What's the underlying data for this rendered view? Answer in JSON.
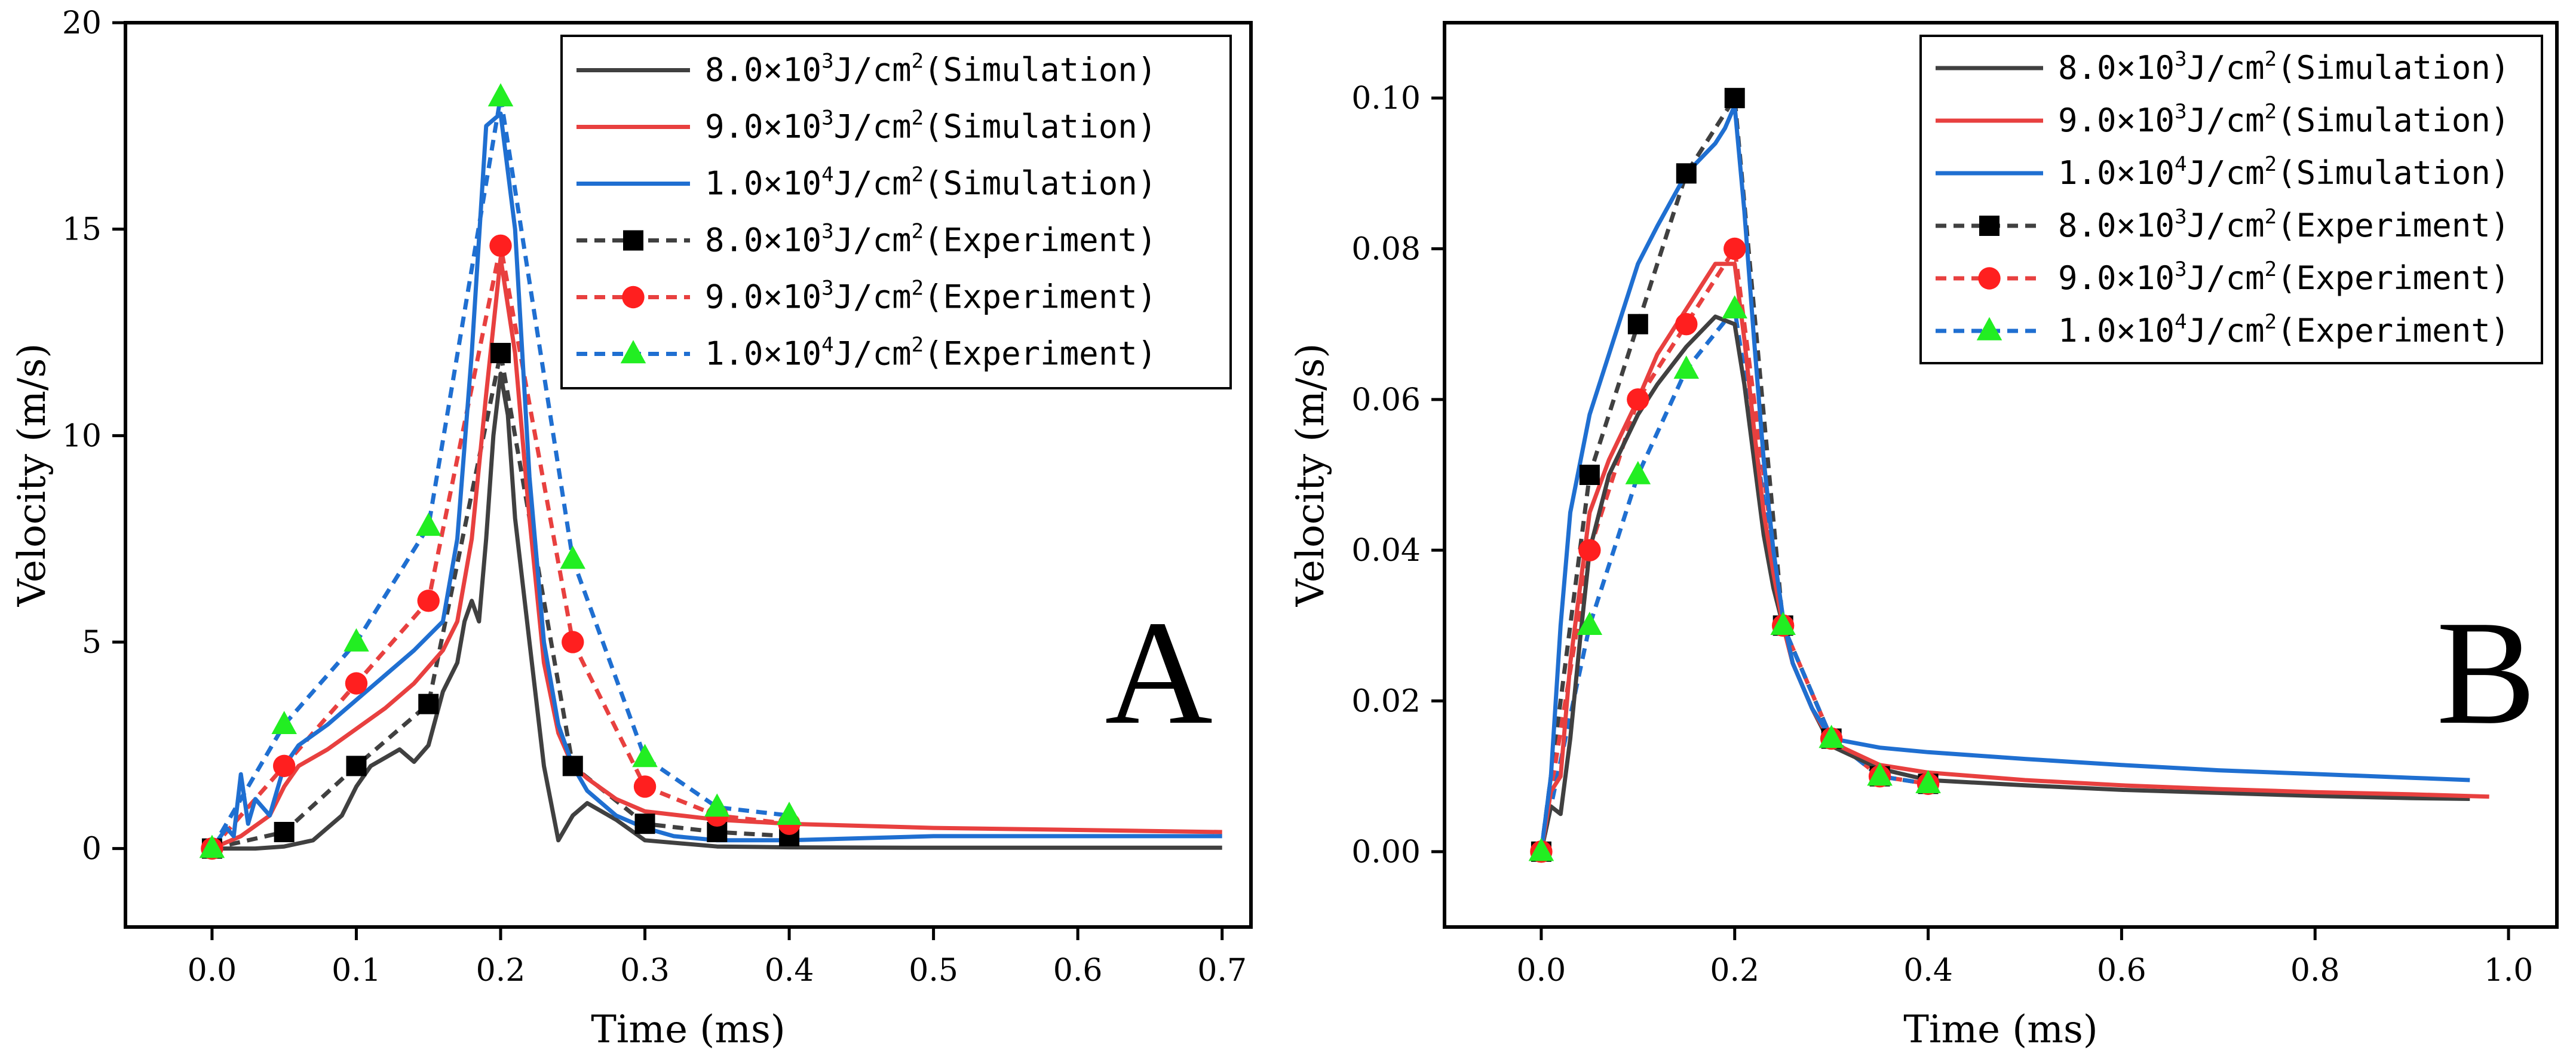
{
  "chart_data": [
    {
      "panel": "A",
      "type": "line",
      "xlabel": "Time (ms)",
      "ylabel": "Velocity (m/s)",
      "xlim": [
        -0.06,
        0.72
      ],
      "ylim": [
        -1.9,
        20
      ],
      "xticks": [
        0.0,
        0.1,
        0.2,
        0.3,
        0.4,
        0.5,
        0.6,
        0.7
      ],
      "xtick_labels": [
        "0.0",
        "0.1",
        "0.2",
        "0.3",
        "0.4",
        "0.5",
        "0.6",
        "0.7"
      ],
      "yticks": [
        0,
        5,
        10,
        15,
        20
      ],
      "ytick_labels": [
        "0",
        "5",
        "10",
        "15",
        "20"
      ],
      "legend_position": "top-right",
      "series": [
        {
          "name": "8.0×10³J/cm²(Simulation)",
          "prefix": "8.0×10",
          "exp": "3",
          "unit": "J/cm",
          "unit_exp": "2",
          "suffix": "(Simulation)",
          "kind": "simulation",
          "color": "#404040",
          "x": [
            0,
            0.03,
            0.05,
            0.07,
            0.09,
            0.1,
            0.11,
            0.12,
            0.13,
            0.14,
            0.15,
            0.16,
            0.17,
            0.175,
            0.18,
            0.185,
            0.19,
            0.195,
            0.2,
            0.205,
            0.21,
            0.22,
            0.23,
            0.24,
            0.25,
            0.26,
            0.27,
            0.28,
            0.3,
            0.35,
            0.4,
            0.5,
            0.6,
            0.7
          ],
          "y": [
            0,
            0,
            0.05,
            0.2,
            0.8,
            1.5,
            2.0,
            2.2,
            2.4,
            2.1,
            2.5,
            3.8,
            4.5,
            5.5,
            6.0,
            5.5,
            7.5,
            10.0,
            11.5,
            10.5,
            8.0,
            5.0,
            2.0,
            0.2,
            0.8,
            1.1,
            0.9,
            0.7,
            0.2,
            0.05,
            0.03,
            0.02,
            0.02,
            0.02
          ]
        },
        {
          "name": "9.0×10³J/cm²(Simulation)",
          "prefix": "9.0×10",
          "exp": "3",
          "unit": "J/cm",
          "unit_exp": "2",
          "suffix": "(Simulation)",
          "kind": "simulation",
          "color": "#e8403f",
          "x": [
            0,
            0.02,
            0.04,
            0.05,
            0.06,
            0.08,
            0.1,
            0.12,
            0.14,
            0.16,
            0.17,
            0.18,
            0.19,
            0.2,
            0.21,
            0.22,
            0.23,
            0.24,
            0.25,
            0.26,
            0.28,
            0.3,
            0.35,
            0.4,
            0.5,
            0.6,
            0.7
          ],
          "y": [
            0,
            0.3,
            0.8,
            1.5,
            2.0,
            2.4,
            2.9,
            3.4,
            4.0,
            4.8,
            5.5,
            7.5,
            11.0,
            14.3,
            12.0,
            8.0,
            4.5,
            2.8,
            2.0,
            1.7,
            1.2,
            0.9,
            0.7,
            0.6,
            0.5,
            0.45,
            0.4
          ]
        },
        {
          "name": "1.0×10⁴J/cm²(Simulation)",
          "prefix": "1.0×10",
          "exp": "4",
          "unit": "J/cm",
          "unit_exp": "2",
          "suffix": "(Simulation)",
          "kind": "simulation",
          "color": "#1f6fd1",
          "x": [
            0,
            0.01,
            0.015,
            0.02,
            0.025,
            0.03,
            0.04,
            0.05,
            0.06,
            0.08,
            0.1,
            0.12,
            0.14,
            0.16,
            0.17,
            0.18,
            0.19,
            0.2,
            0.21,
            0.22,
            0.23,
            0.24,
            0.25,
            0.26,
            0.28,
            0.3,
            0.32,
            0.35,
            0.4,
            0.5,
            0.6,
            0.7
          ],
          "y": [
            0,
            0.5,
            0.3,
            1.8,
            0.6,
            1.2,
            0.8,
            2.0,
            2.5,
            3.0,
            3.6,
            4.2,
            4.8,
            5.5,
            7.5,
            12.0,
            17.5,
            17.8,
            15.0,
            9.0,
            5.0,
            3.0,
            2.0,
            1.4,
            0.8,
            0.5,
            0.3,
            0.2,
            0.2,
            0.3,
            0.3,
            0.3
          ]
        },
        {
          "name": "8.0×10³J/cm²(Experiment)",
          "prefix": "8.0×10",
          "exp": "3",
          "unit": "J/cm",
          "unit_exp": "2",
          "suffix": "(Experiment)",
          "kind": "experiment",
          "marker": "square",
          "color": "#404040",
          "marker_color": "#000000",
          "x": [
            0,
            0.05,
            0.1,
            0.15,
            0.2,
            0.25,
            0.3,
            0.35,
            0.4
          ],
          "y": [
            0,
            0.4,
            2.0,
            3.5,
            12.0,
            2.0,
            0.6,
            0.4,
            0.3
          ]
        },
        {
          "name": "9.0×10³J/cm²(Experiment)",
          "prefix": "9.0×10",
          "exp": "3",
          "unit": "J/cm",
          "unit_exp": "2",
          "suffix": "(Experiment)",
          "kind": "experiment",
          "marker": "circle",
          "color": "#e8403f",
          "marker_color": "#ff1f1f",
          "x": [
            0,
            0.05,
            0.1,
            0.15,
            0.2,
            0.25,
            0.3,
            0.35,
            0.4
          ],
          "y": [
            0,
            2.0,
            4.0,
            6.0,
            14.6,
            5.0,
            1.5,
            0.8,
            0.6
          ]
        },
        {
          "name": "1.0×10⁴J/cm²(Experiment)",
          "prefix": "1.0×10",
          "exp": "4",
          "unit": "J/cm",
          "unit_exp": "2",
          "suffix": "(Experiment)",
          "kind": "experiment",
          "marker": "triangle",
          "color": "#1f6fd1",
          "marker_color": "#22ee22",
          "x": [
            0,
            0.05,
            0.1,
            0.15,
            0.2,
            0.25,
            0.3,
            0.35,
            0.4
          ],
          "y": [
            0,
            3.0,
            5.0,
            7.8,
            18.2,
            7.0,
            2.2,
            1.0,
            0.8
          ]
        }
      ]
    },
    {
      "panel": "B",
      "type": "line",
      "xlabel": "Time (ms)",
      "ylabel": "Velocity (m/s)",
      "xlim": [
        -0.1,
        1.05
      ],
      "ylim": [
        -0.01,
        0.11
      ],
      "xticks": [
        0.0,
        0.2,
        0.4,
        0.6,
        0.8,
        1.0
      ],
      "xtick_labels": [
        "0.0",
        "0.2",
        "0.4",
        "0.6",
        "0.8",
        "1.0"
      ],
      "yticks": [
        0.0,
        0.02,
        0.04,
        0.06,
        0.08,
        0.1
      ],
      "ytick_labels": [
        "0.00",
        "0.02",
        "0.04",
        "0.06",
        "0.08",
        "0.10"
      ],
      "legend_position": "top-right",
      "series": [
        {
          "name": "8.0×10³J/cm²(Simulation)",
          "prefix": "8.0×10",
          "exp": "3",
          "unit": "J/cm",
          "unit_exp": "2",
          "suffix": "(Simulation)",
          "kind": "simulation",
          "color": "#404040",
          "x": [
            0,
            0.01,
            0.02,
            0.03,
            0.04,
            0.05,
            0.07,
            0.1,
            0.12,
            0.15,
            0.18,
            0.2,
            0.21,
            0.22,
            0.23,
            0.24,
            0.25,
            0.26,
            0.28,
            0.3,
            0.35,
            0.4,
            0.5,
            0.6,
            0.7,
            0.8,
            0.9,
            0.96
          ],
          "y": [
            0.0,
            0.006,
            0.005,
            0.015,
            0.028,
            0.04,
            0.05,
            0.058,
            0.062,
            0.067,
            0.071,
            0.07,
            0.062,
            0.052,
            0.042,
            0.035,
            0.03,
            0.025,
            0.019,
            0.014,
            0.011,
            0.0095,
            0.0088,
            0.0082,
            0.0078,
            0.0074,
            0.0071,
            0.007
          ]
        },
        {
          "name": "9.0×10³J/cm²(Simulation)",
          "prefix": "9.0×10",
          "exp": "3",
          "unit": "J/cm",
          "unit_exp": "2",
          "suffix": "(Simulation)",
          "kind": "simulation",
          "color": "#e8403f",
          "x": [
            0,
            0.01,
            0.02,
            0.03,
            0.05,
            0.07,
            0.1,
            0.12,
            0.15,
            0.18,
            0.2,
            0.21,
            0.22,
            0.23,
            0.24,
            0.25,
            0.26,
            0.28,
            0.3,
            0.35,
            0.4,
            0.5,
            0.6,
            0.7,
            0.8,
            0.9,
            0.98
          ],
          "y": [
            0.0,
            0.008,
            0.01,
            0.025,
            0.045,
            0.052,
            0.06,
            0.066,
            0.072,
            0.078,
            0.078,
            0.068,
            0.056,
            0.045,
            0.037,
            0.03,
            0.025,
            0.019,
            0.0145,
            0.0115,
            0.0105,
            0.0095,
            0.0088,
            0.0083,
            0.0079,
            0.0076,
            0.0073
          ]
        },
        {
          "name": "1.0×10⁴J/cm²(Simulation)",
          "prefix": "1.0×10",
          "exp": "4",
          "unit": "J/cm",
          "unit_exp": "2",
          "suffix": "(Simulation)",
          "kind": "simulation",
          "color": "#1f6fd1",
          "x": [
            0,
            0.01,
            0.02,
            0.03,
            0.05,
            0.07,
            0.1,
            0.12,
            0.15,
            0.18,
            0.19,
            0.2,
            0.21,
            0.22,
            0.23,
            0.24,
            0.25,
            0.26,
            0.28,
            0.3,
            0.35,
            0.4,
            0.5,
            0.6,
            0.7,
            0.8,
            0.9,
            0.96
          ],
          "y": [
            0.0,
            0.01,
            0.03,
            0.045,
            0.058,
            0.066,
            0.078,
            0.083,
            0.09,
            0.094,
            0.096,
            0.099,
            0.085,
            0.068,
            0.052,
            0.04,
            0.031,
            0.025,
            0.019,
            0.015,
            0.0138,
            0.0132,
            0.0123,
            0.0115,
            0.0108,
            0.0103,
            0.0098,
            0.0095
          ]
        },
        {
          "name": "8.0×10³J/cm²(Experiment)",
          "prefix": "8.0×10",
          "exp": "3",
          "unit": "J/cm",
          "unit_exp": "2",
          "suffix": "(Experiment)",
          "kind": "experiment",
          "marker": "square",
          "color": "#404040",
          "marker_color": "#000000",
          "x": [
            0,
            0.05,
            0.1,
            0.15,
            0.2,
            0.25,
            0.3,
            0.35,
            0.4
          ],
          "y": [
            0,
            0.05,
            0.07,
            0.09,
            0.1,
            0.03,
            0.015,
            0.01,
            0.009
          ]
        },
        {
          "name": "9.0×10³J/cm²(Experiment)",
          "prefix": "9.0×10",
          "exp": "3",
          "unit": "J/cm",
          "unit_exp": "2",
          "suffix": "(Experiment)",
          "kind": "experiment",
          "marker": "circle",
          "color": "#e8403f",
          "marker_color": "#ff1f1f",
          "x": [
            0,
            0.05,
            0.1,
            0.15,
            0.2,
            0.25,
            0.3,
            0.35,
            0.4
          ],
          "y": [
            0,
            0.04,
            0.06,
            0.07,
            0.08,
            0.03,
            0.015,
            0.01,
            0.009
          ]
        },
        {
          "name": "1.0×10⁴J/cm²(Experiment)",
          "prefix": "1.0×10",
          "exp": "4",
          "unit": "J/cm",
          "unit_exp": "2",
          "suffix": "(Experiment)",
          "kind": "experiment",
          "marker": "triangle",
          "color": "#1f6fd1",
          "marker_color": "#22ee22",
          "x": [
            0,
            0.05,
            0.1,
            0.15,
            0.2,
            0.25,
            0.3,
            0.35,
            0.4
          ],
          "y": [
            0,
            0.03,
            0.05,
            0.064,
            0.072,
            0.03,
            0.015,
            0.01,
            0.009
          ]
        }
      ]
    }
  ]
}
